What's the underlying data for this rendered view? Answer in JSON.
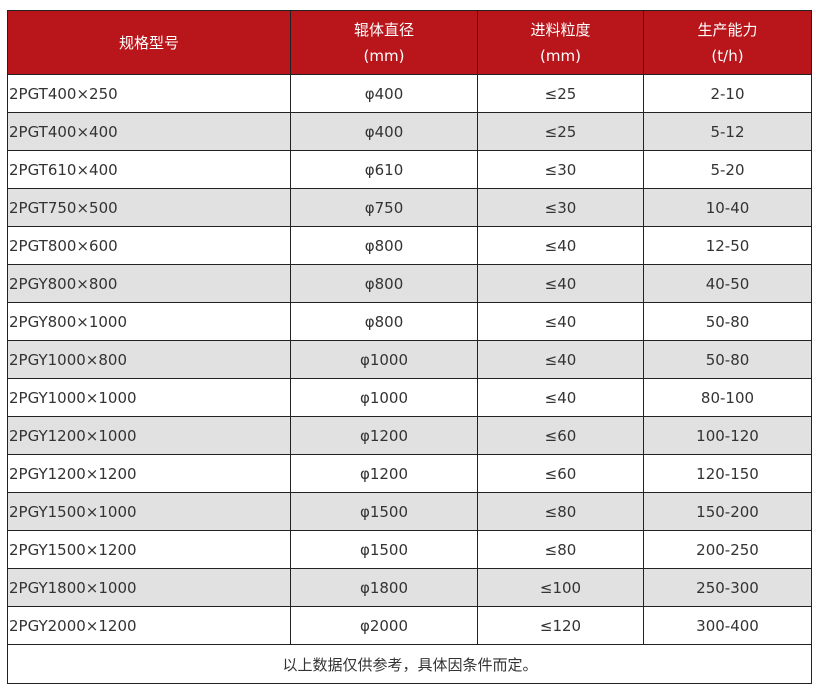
{
  "header": {
    "model": "规格型号",
    "roller": "辊体直径",
    "roller_unit": "(mm)",
    "feed": "进料粒度",
    "feed_unit": "(mm)",
    "capacity": "生产能力",
    "capacity_unit": "(t/h)"
  },
  "rows": [
    [
      "2PGT400×250",
      "φ400",
      "≤25",
      "2-10"
    ],
    [
      "2PGT400×400",
      "φ400",
      "≤25",
      "5-12"
    ],
    [
      "2PGT610×400",
      "φ610",
      "≤30",
      "5-20"
    ],
    [
      "2PGT750×500",
      "φ750",
      "≤30",
      "10-40"
    ],
    [
      "2PGT800×600",
      "φ800",
      "≤40",
      "12-50"
    ],
    [
      "2PGY800×800",
      "φ800",
      "≤40",
      "40-50"
    ],
    [
      "2PGY800×1000",
      "φ800",
      "≤40",
      "50-80"
    ],
    [
      "2PGY1000×800",
      "φ1000",
      "≤40",
      "50-80"
    ],
    [
      "2PGY1000×1000",
      "φ1000",
      "≤40",
      "80-100"
    ],
    [
      "2PGY1200×1000",
      "φ1200",
      "≤60",
      "100-120"
    ],
    [
      "2PGY1200×1200",
      "φ1200",
      "≤60",
      "120-150"
    ],
    [
      "2PGY1500×1000",
      "φ1500",
      "≤80",
      "150-200"
    ],
    [
      "2PGY1500×1200",
      "φ1500",
      "≤80",
      "200-250"
    ],
    [
      "2PGY1800×1000",
      "φ1800",
      "≤100",
      "250-300"
    ],
    [
      "2PGY2000×1200",
      "φ2000",
      "≤120",
      "300-400"
    ]
  ],
  "footer": "以上数据仅供参考，具体因条件而定。",
  "colors": {
    "header_bg": "#b8161b",
    "alt_row": "#e1e1e1"
  }
}
